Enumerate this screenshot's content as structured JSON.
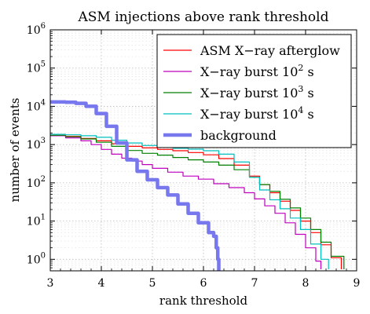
{
  "chart_data": {
    "type": "line",
    "title": "ASM injections above rank threshold",
    "xlabel": "rank threshold",
    "ylabel": "number of events",
    "xlim": [
      3,
      9
    ],
    "ylim": [
      0.5,
      1000000
    ],
    "yscale": "log",
    "grid": true,
    "legend_position": "top-right",
    "x_ticks": [
      "3",
      "4",
      "5",
      "6",
      "7",
      "8",
      "9"
    ],
    "y_ticks": [
      {
        "value": 1,
        "base": "10",
        "exp": "0"
      },
      {
        "value": 10,
        "base": "10",
        "exp": "1"
      },
      {
        "value": 100,
        "base": "10",
        "exp": "2"
      },
      {
        "value": 1000,
        "base": "10",
        "exp": "3"
      },
      {
        "value": 10000,
        "base": "10",
        "exp": "4"
      },
      {
        "value": 100000,
        "base": "10",
        "exp": "5"
      },
      {
        "value": 1000000,
        "base": "10",
        "exp": "6"
      }
    ],
    "series": [
      {
        "name": "ASM X−ray afterglow",
        "name_parts": [
          "ASM X−ray afterglow",
          "",
          ""
        ],
        "color": "#ff0000",
        "width": 1.2,
        "x": [
          3.0,
          3.3,
          3.6,
          3.9,
          4.2,
          4.5,
          4.8,
          5.1,
          5.4,
          5.7,
          6.0,
          6.3,
          6.6,
          6.9,
          7.1,
          7.3,
          7.5,
          7.7,
          7.9,
          8.1,
          8.3,
          8.5,
          8.7
        ],
        "y": [
          1750,
          1650,
          1450,
          1250,
          1050,
          900,
          820,
          750,
          690,
          620,
          540,
          430,
          290,
          150,
          90,
          55,
          33,
          19,
          10,
          5,
          2.4,
          1.1,
          0.55
        ]
      },
      {
        "name": "X−ray burst 10² s",
        "name_parts": [
          "X−ray burst 10",
          "2",
          " s"
        ],
        "color": "#bf00bf",
        "width": 1.2,
        "x": [
          3.0,
          3.3,
          3.6,
          3.8,
          4.0,
          4.2,
          4.4,
          4.6,
          4.8,
          5.0,
          5.3,
          5.6,
          5.9,
          6.2,
          6.5,
          6.8,
          7.0,
          7.2,
          7.4,
          7.6,
          7.8,
          8.0,
          8.2,
          8.3
        ],
        "y": [
          1700,
          1500,
          1250,
          1000,
          750,
          560,
          440,
          370,
          300,
          240,
          190,
          150,
          125,
          95,
          75,
          55,
          38,
          25,
          16,
          9,
          4.5,
          2.0,
          0.9,
          0.55
        ]
      },
      {
        "name": "X−ray burst 10³ s",
        "name_parts": [
          "X−ray burst 10",
          "3",
          " s"
        ],
        "color": "#008000",
        "width": 1.2,
        "x": [
          3.0,
          3.3,
          3.6,
          3.9,
          4.2,
          4.5,
          4.8,
          5.1,
          5.4,
          5.7,
          6.0,
          6.3,
          6.6,
          6.9,
          7.1,
          7.3,
          7.5,
          7.7,
          7.9,
          8.1,
          8.3,
          8.5,
          8.75
        ],
        "y": [
          1750,
          1600,
          1400,
          1150,
          900,
          700,
          590,
          530,
          460,
          400,
          350,
          290,
          220,
          140,
          90,
          60,
          37,
          22,
          12,
          6,
          2.8,
          1.2,
          0.55
        ]
      },
      {
        "name": "X−ray burst 10⁴ s",
        "name_parts": [
          "X−ray burst 10",
          "4",
          " s"
        ],
        "color": "#00bfbf",
        "width": 1.2,
        "x": [
          3.0,
          3.3,
          3.6,
          3.9,
          4.2,
          4.5,
          4.8,
          5.1,
          5.4,
          5.7,
          6.0,
          6.3,
          6.6,
          6.9,
          7.1,
          7.3,
          7.5,
          7.7,
          7.9,
          8.1,
          8.3,
          8.45
        ],
        "y": [
          1850,
          1800,
          1700,
          1550,
          1300,
          1100,
          950,
          850,
          800,
          760,
          690,
          560,
          350,
          140,
          65,
          36,
          21,
          12,
          6,
          2.5,
          1.0,
          0.55
        ]
      },
      {
        "name": "background",
        "name_parts": [
          "background",
          "",
          ""
        ],
        "color": "#7777ee",
        "width": 4.5,
        "x": [
          3.0,
          3.3,
          3.5,
          3.7,
          3.9,
          4.1,
          4.3,
          4.5,
          4.7,
          4.9,
          5.1,
          5.3,
          5.5,
          5.7,
          5.9,
          6.1,
          6.2,
          6.25,
          6.28,
          6.3
        ],
        "y": [
          13000,
          12800,
          12000,
          10000,
          6500,
          3000,
          1100,
          400,
          200,
          120,
          75,
          48,
          28,
          16,
          9,
          5,
          4,
          2,
          1,
          0.5
        ]
      }
    ]
  }
}
